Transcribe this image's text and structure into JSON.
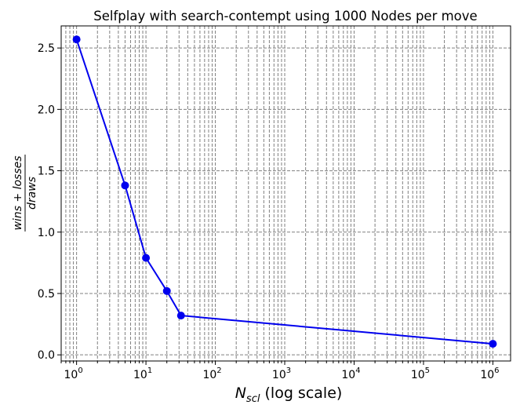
{
  "chart_data": {
    "type": "line",
    "title": "Selfplay with search-contempt using 1000 Nodes per move",
    "xlabel": {
      "symbol": "N",
      "subscript": "scl",
      "suffix": " (log scale)"
    },
    "ylabel": {
      "numerator": "wins + losses",
      "denominator": "draws"
    },
    "x_scale": "log",
    "xlim": [
      0.6,
      1800000
    ],
    "ylim": [
      -0.05,
      2.68
    ],
    "grid": true,
    "grid_style": "dashed",
    "x_ticks": [
      {
        "value": 1,
        "base": "10",
        "exp": "0"
      },
      {
        "value": 10,
        "base": "10",
        "exp": "1"
      },
      {
        "value": 100,
        "base": "10",
        "exp": "2"
      },
      {
        "value": 1000,
        "base": "10",
        "exp": "3"
      },
      {
        "value": 10000,
        "base": "10",
        "exp": "4"
      },
      {
        "value": 100000,
        "base": "10",
        "exp": "5"
      },
      {
        "value": 1000000,
        "base": "10",
        "exp": "6"
      }
    ],
    "y_ticks": [
      {
        "value": 0.0,
        "label": "0.0"
      },
      {
        "value": 0.5,
        "label": "0.5"
      },
      {
        "value": 1.0,
        "label": "1.0"
      },
      {
        "value": 1.5,
        "label": "1.5"
      },
      {
        "value": 2.0,
        "label": "2.0"
      },
      {
        "value": 2.5,
        "label": "2.5"
      }
    ],
    "series": [
      {
        "color": "#0000ee",
        "marker": "circle",
        "x": [
          1,
          5,
          10,
          20,
          32,
          1000000
        ],
        "y": [
          2.57,
          1.38,
          0.79,
          0.52,
          0.32,
          0.09
        ]
      }
    ]
  }
}
